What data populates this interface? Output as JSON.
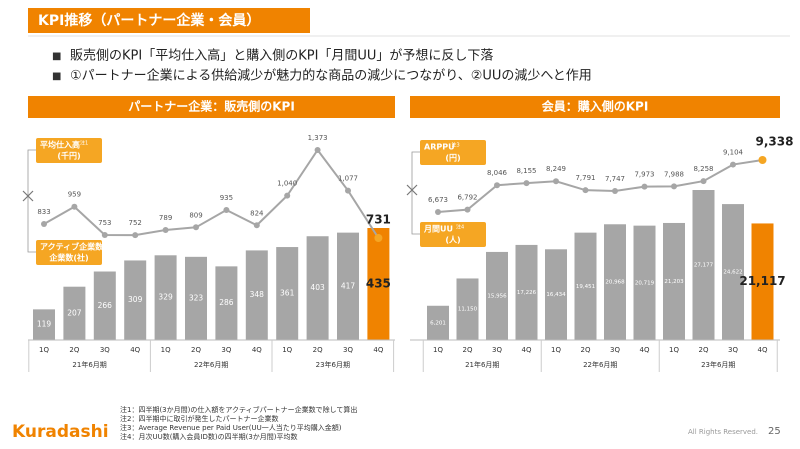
{
  "header": {
    "title": "KPI推移（パートナー企業・会員）"
  },
  "bullets": [
    "販売側のKPI「平均仕入高」と購入側のKPI「月間UU」が予想に反し下落",
    "①パートナー企業による供給減少が魅力的な商品の減少につながり、②UUの減少へと作用"
  ],
  "chart_data": [
    {
      "type": "bar_line",
      "title": "パートナー企業：販売側のKPI",
      "categories": [
        "1Q",
        "2Q",
        "3Q",
        "4Q",
        "1Q",
        "2Q",
        "3Q",
        "4Q",
        "1Q",
        "2Q",
        "3Q",
        "4Q"
      ],
      "groups": [
        "21年6月期",
        "22年6月期",
        "23年6月期"
      ],
      "series": [
        {
          "name": "平均仕入高",
          "note": "注1",
          "unit": "(千円)",
          "type": "line",
          "color": "#a6a6a6",
          "highlight_color": "#f5a623",
          "values": [
            833,
            959,
            753,
            752,
            789,
            809,
            935,
            824,
            1040,
            1373,
            1077,
            731
          ],
          "value_labels": [
            "833",
            "959",
            "753",
            "752",
            "789",
            "809",
            "935",
            "824",
            "1,040",
            "1,373",
            "1,077",
            "731"
          ]
        },
        {
          "name": "アクティブ企業数",
          "note": "注2",
          "unit": "企業数(社)",
          "type": "bar",
          "color": "#a6a6a6",
          "highlight_color": "#f08300",
          "values": [
            119,
            207,
            266,
            309,
            329,
            323,
            286,
            348,
            361,
            403,
            417,
            435
          ]
        }
      ]
    },
    {
      "type": "bar_line",
      "title": "会員：購入側のKPI",
      "categories": [
        "1Q",
        "2Q",
        "3Q",
        "4Q",
        "1Q",
        "2Q",
        "3Q",
        "4Q",
        "1Q",
        "2Q",
        "3Q",
        "4Q"
      ],
      "groups": [
        "21年6月期",
        "22年6月期",
        "23年6月期"
      ],
      "series": [
        {
          "name": "ARPPU",
          "note": "注3",
          "unit": "(円)",
          "type": "line",
          "color": "#a6a6a6",
          "highlight_color": "#f5a623",
          "values": [
            6673,
            6792,
            8046,
            8155,
            8249,
            7791,
            7747,
            7973,
            7988,
            8258,
            9104,
            9338
          ],
          "value_labels": [
            "6,673",
            "6,792",
            "8,046",
            "8,155",
            "8,249",
            "7,791",
            "7,747",
            "7,973",
            "7,988",
            "8,258",
            "9,104",
            "9,338"
          ]
        },
        {
          "name": "月間UU",
          "note": "注4",
          "unit": "(人)",
          "type": "bar",
          "color": "#a6a6a6",
          "highlight_color": "#f08300",
          "values": [
            6201,
            11150,
            15956,
            17226,
            16434,
            19451,
            20968,
            20719,
            21203,
            27177,
            24622,
            21117
          ],
          "value_labels": [
            "6,201",
            "11,150",
            "15,956",
            "17,226",
            "16,434",
            "19,451",
            "20,968",
            "20,719",
            "21,203",
            "27,177",
            "24,622",
            "21,117"
          ]
        }
      ]
    }
  ],
  "footnotes": [
    "注1：四半期(3か月間)の仕入額をアクティブパートナー企業数で除して算出",
    "注2：四半期中に取引が発生したパートナー企業数",
    "注3：Average Revenue per Paid User(UU一人当たり平均購入金額)",
    "注4：月次UU数(購入会員ID数)の四半期(3か月間)平均数"
  ],
  "footer": {
    "logo": "Kuradashi",
    "rights": "All Rights Reserved.",
    "page": "25"
  }
}
